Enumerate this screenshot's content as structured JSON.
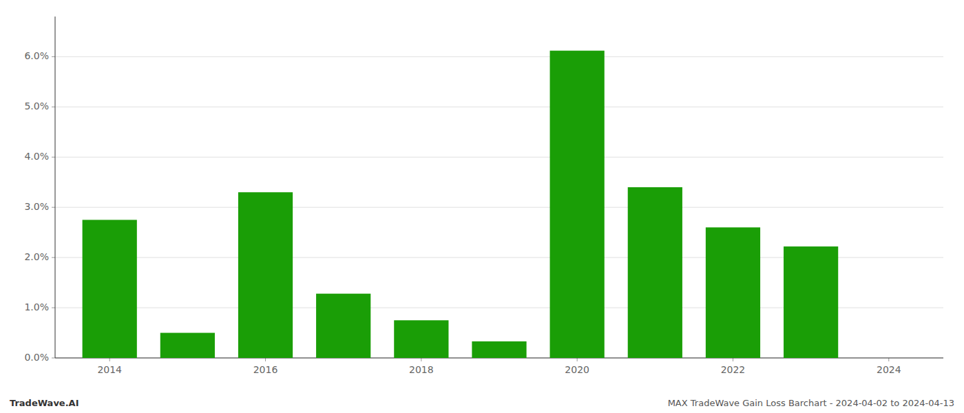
{
  "chart_data": {
    "type": "bar",
    "x": [
      2014,
      2015,
      2016,
      2017,
      2018,
      2019,
      2020,
      2021,
      2022,
      2023
    ],
    "values": [
      0.0275,
      0.005,
      0.033,
      0.0128,
      0.0075,
      0.0033,
      0.0612,
      0.034,
      0.026,
      0.0222
    ],
    "color": "#1a9e06",
    "xlim": [
      2013.3,
      2024.7
    ],
    "xticks": [
      2014,
      2016,
      2018,
      2020,
      2022,
      2024
    ],
    "ylim": [
      0.0,
      0.068
    ],
    "yticks": [
      {
        "value": 0.0,
        "label": "0.0%"
      },
      {
        "value": 0.01,
        "label": "1.0%"
      },
      {
        "value": 0.02,
        "label": "2.0%"
      },
      {
        "value": 0.03,
        "label": "3.0%"
      },
      {
        "value": 0.04,
        "label": "4.0%"
      },
      {
        "value": 0.05,
        "label": "5.0%"
      },
      {
        "value": 0.06,
        "label": "6.0%"
      }
    ],
    "grid": true,
    "annotations": [
      "TradeWave.AI",
      "MAX TradeWave Gain Loss Barchart - 2024-04-02 to 2024-04-13"
    ]
  }
}
